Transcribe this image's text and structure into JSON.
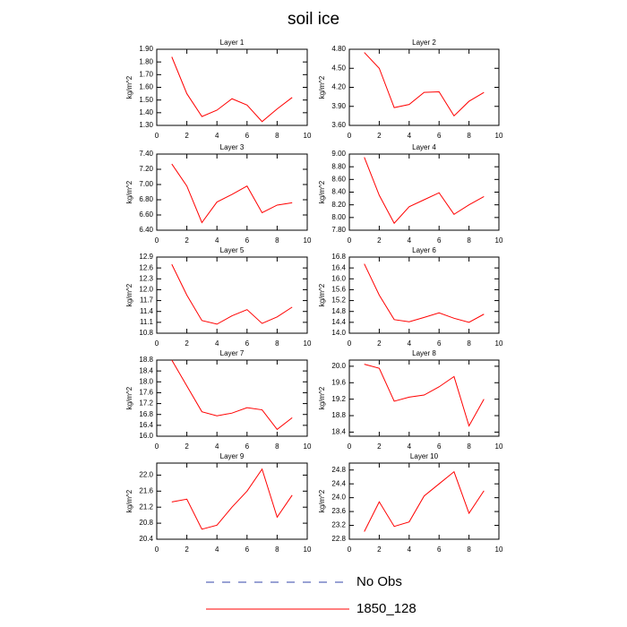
{
  "title": "soil ice",
  "legend": [
    {
      "name": "No Obs",
      "color": "#3344aa",
      "dash": true
    },
    {
      "name": "1850_128",
      "color": "#ff0000",
      "dash": false
    }
  ],
  "chart_data": [
    {
      "type": "line",
      "title": "Layer 1",
      "ylabel": "kg/m^2",
      "color": "#ff0000",
      "x": [
        1,
        2,
        3,
        4,
        5,
        6,
        7,
        8,
        9
      ],
      "xlim": [
        0,
        10
      ],
      "xticks": [
        0,
        2,
        4,
        6,
        8,
        10
      ],
      "values": [
        1.84,
        1.55,
        1.37,
        1.42,
        1.51,
        1.46,
        1.33,
        1.43,
        1.52
      ],
      "ylim": [
        1.3,
        1.9
      ],
      "yticks": [
        {
          "value": 1.3,
          "label": "1.30"
        },
        {
          "value": 1.4,
          "label": "1.40"
        },
        {
          "value": 1.5,
          "label": "1.50"
        },
        {
          "value": 1.6,
          "label": "1.60"
        },
        {
          "value": 1.7,
          "label": "1.70"
        },
        {
          "value": 1.8,
          "label": "1.80"
        },
        {
          "value": 1.9,
          "label": "1.90"
        }
      ]
    },
    {
      "type": "line",
      "title": "Layer 2",
      "ylabel": "kg/m^2",
      "color": "#ff0000",
      "x": [
        1,
        2,
        3,
        4,
        5,
        6,
        7,
        8,
        9
      ],
      "xlim": [
        0,
        10
      ],
      "xticks": [
        0,
        2,
        4,
        6,
        8,
        10
      ],
      "values": [
        4.75,
        4.5,
        3.88,
        3.93,
        4.12,
        4.13,
        3.75,
        3.98,
        4.12
      ],
      "ylim": [
        3.6,
        4.8
      ],
      "yticks": [
        {
          "value": 3.6,
          "label": "3.60"
        },
        {
          "value": 3.9,
          "label": "3.90"
        },
        {
          "value": 4.2,
          "label": "4.20"
        },
        {
          "value": 4.5,
          "label": "4.50"
        },
        {
          "value": 4.8,
          "label": "4.80"
        }
      ]
    },
    {
      "type": "line",
      "title": "Layer 3",
      "ylabel": "kg/m^2",
      "color": "#ff0000",
      "x": [
        1,
        2,
        3,
        4,
        5,
        6,
        7,
        8,
        9
      ],
      "xlim": [
        0,
        10
      ],
      "xticks": [
        0,
        2,
        4,
        6,
        8,
        10
      ],
      "values": [
        7.27,
        6.98,
        6.5,
        6.77,
        6.87,
        6.98,
        6.63,
        6.73,
        6.76
      ],
      "ylim": [
        6.4,
        7.4
      ],
      "yticks": [
        {
          "value": 6.4,
          "label": "6.40"
        },
        {
          "value": 6.6,
          "label": "6.60"
        },
        {
          "value": 6.8,
          "label": "6.80"
        },
        {
          "value": 7.0,
          "label": "7.00"
        },
        {
          "value": 7.2,
          "label": "7.20"
        },
        {
          "value": 7.4,
          "label": "7.40"
        }
      ]
    },
    {
      "type": "line",
      "title": "Layer 4",
      "ylabel": "kg/m^2",
      "color": "#ff0000",
      "x": [
        1,
        2,
        3,
        4,
        5,
        6,
        7,
        8,
        9
      ],
      "xlim": [
        0,
        10
      ],
      "xticks": [
        0,
        2,
        4,
        6,
        8,
        10
      ],
      "values": [
        8.95,
        8.35,
        7.91,
        8.17,
        8.28,
        8.39,
        8.05,
        8.2,
        8.33
      ],
      "ylim": [
        7.8,
        9.0
      ],
      "yticks": [
        {
          "value": 7.8,
          "label": "7.80"
        },
        {
          "value": 8.0,
          "label": "8.00"
        },
        {
          "value": 8.2,
          "label": "8.20"
        },
        {
          "value": 8.4,
          "label": "8.40"
        },
        {
          "value": 8.6,
          "label": "8.60"
        },
        {
          "value": 8.8,
          "label": "8.80"
        },
        {
          "value": 9.0,
          "label": "9.00"
        }
      ]
    },
    {
      "type": "line",
      "title": "Layer 5",
      "ylabel": "kg/m^2",
      "color": "#ff0000",
      "x": [
        1,
        2,
        3,
        4,
        5,
        6,
        7,
        8,
        9
      ],
      "xlim": [
        0,
        10
      ],
      "xticks": [
        0,
        2,
        4,
        6,
        8,
        10
      ],
      "values": [
        12.7,
        11.85,
        11.15,
        11.05,
        11.28,
        11.45,
        11.07,
        11.25,
        11.52
      ],
      "ylim": [
        10.8,
        12.9
      ],
      "yticks": [
        10.8,
        11.1,
        11.4,
        11.7,
        {
          "value": 12,
          "label": "12.0"
        },
        12.3,
        12.6,
        12.9
      ]
    },
    {
      "type": "line",
      "title": "Layer 6",
      "ylabel": "kg/m^2",
      "color": "#ff0000",
      "x": [
        1,
        2,
        3,
        4,
        5,
        6,
        7,
        8,
        9
      ],
      "xlim": [
        0,
        10
      ],
      "xticks": [
        0,
        2,
        4,
        6,
        8,
        10
      ],
      "values": [
        16.55,
        15.4,
        14.5,
        14.42,
        14.58,
        14.75,
        14.55,
        14.4,
        14.7
      ],
      "ylim": [
        14.0,
        16.8
      ],
      "yticks": [
        {
          "value": 14,
          "label": "14.0"
        },
        14.4,
        14.8,
        15.2,
        15.6,
        {
          "value": 16,
          "label": "16.0"
        },
        16.4,
        16.8
      ]
    },
    {
      "type": "line",
      "title": "Layer 7",
      "ylabel": "kg/m^2",
      "color": "#ff0000",
      "x": [
        1,
        2,
        3,
        4,
        5,
        6,
        7,
        8,
        9
      ],
      "xlim": [
        0,
        10
      ],
      "xticks": [
        0,
        2,
        4,
        6,
        8,
        10
      ],
      "values": [
        18.8,
        17.85,
        16.9,
        16.75,
        16.85,
        17.05,
        16.97,
        16.25,
        16.68
      ],
      "ylim": [
        16.0,
        18.8
      ],
      "yticks": [
        {
          "value": 16,
          "label": "16.0"
        },
        16.4,
        16.8,
        17.2,
        17.6,
        {
          "value": 18,
          "label": "18.0"
        },
        18.4,
        18.8
      ]
    },
    {
      "type": "line",
      "title": "Layer 8",
      "ylabel": "kg/m^2",
      "color": "#ff0000",
      "x": [
        1,
        2,
        3,
        4,
        5,
        6,
        7,
        8,
        9
      ],
      "xlim": [
        0,
        10
      ],
      "xticks": [
        0,
        2,
        4,
        6,
        8,
        10
      ],
      "values": [
        20.05,
        19.95,
        19.15,
        19.25,
        19.3,
        19.5,
        19.75,
        18.55,
        19.2
      ],
      "ylim": [
        18.3,
        20.15
      ],
      "yticks": [
        18.4,
        18.8,
        19.2,
        19.6,
        {
          "value": 20,
          "label": "20.0"
        }
      ]
    },
    {
      "type": "line",
      "title": "Layer 9",
      "ylabel": "kg/m^2",
      "color": "#ff0000",
      "x": [
        1,
        2,
        3,
        4,
        5,
        6,
        7,
        8,
        9
      ],
      "xlim": [
        0,
        10
      ],
      "xticks": [
        0,
        2,
        4,
        6,
        8,
        10
      ],
      "values": [
        21.33,
        21.4,
        20.65,
        20.75,
        21.2,
        21.6,
        22.15,
        20.95,
        21.5
      ],
      "ylim": [
        20.4,
        22.3
      ],
      "yticks": [
        20.4,
        20.8,
        21.2,
        21.6,
        {
          "value": 22,
          "label": "22.0"
        }
      ]
    },
    {
      "type": "line",
      "title": "Layer 10",
      "ylabel": "kg/m^2",
      "color": "#ff0000",
      "x": [
        1,
        2,
        3,
        4,
        5,
        6,
        7,
        8,
        9
      ],
      "xlim": [
        0,
        10
      ],
      "xticks": [
        0,
        2,
        4,
        6,
        8,
        10
      ],
      "values": [
        23.02,
        23.88,
        23.17,
        23.3,
        24.05,
        24.4,
        24.75,
        23.55,
        24.2
      ],
      "ylim": [
        22.8,
        25.0
      ],
      "yticks": [
        22.8,
        23.2,
        23.6,
        {
          "value": 24,
          "label": "24.0"
        },
        24.4,
        24.8
      ]
    }
  ]
}
